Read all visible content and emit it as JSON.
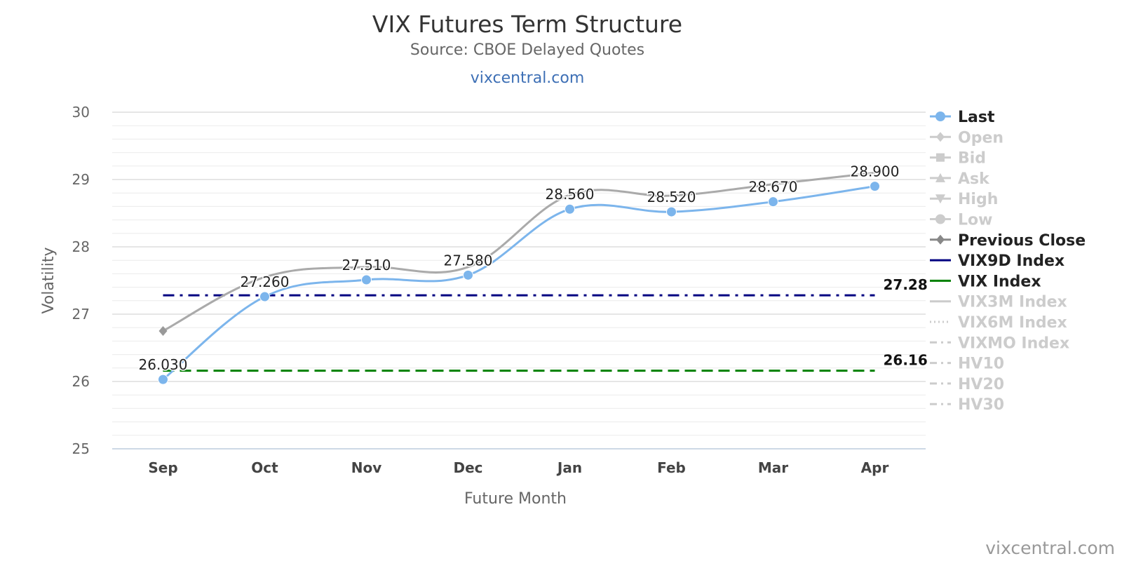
{
  "title": "VIX Futures Term Structure",
  "subtitle": "Source: CBOE Delayed Quotes",
  "site_link": "vixcentral.com",
  "credit": "vixcentral.com",
  "chart_data": {
    "type": "line",
    "title": "VIX Futures Term Structure",
    "subtitle": "Source: CBOE Delayed Quotes",
    "xlabel": "Future Month",
    "ylabel": "Volatility",
    "ylim": [
      25,
      30
    ],
    "yticks": [
      25,
      26,
      27,
      28,
      29,
      30
    ],
    "grid": true,
    "legend_position": "right",
    "categories": [
      "Sep",
      "Oct",
      "Nov",
      "Dec",
      "Jan",
      "Feb",
      "Mar",
      "Apr"
    ],
    "series": [
      {
        "name": "Last",
        "color": "#7cb5ec",
        "marker": "circle",
        "visible": true,
        "values": [
          26.03,
          27.26,
          27.51,
          27.58,
          28.56,
          28.52,
          28.67,
          28.9
        ],
        "labels": [
          "26.030",
          "27.260",
          "27.510",
          "27.580",
          "28.560",
          "28.520",
          "28.670",
          "28.900"
        ]
      },
      {
        "name": "Previous Close",
        "color": "#aaaaaa",
        "marker": "diamond",
        "visible": true,
        "values": [
          26.75,
          27.55,
          27.7,
          27.7,
          28.77,
          28.76,
          28.93,
          29.1
        ]
      }
    ],
    "reference_lines": [
      {
        "name": "VIX9D Index",
        "value": 27.28,
        "label": "27.28",
        "color": "#000080",
        "dash": "dash-dot"
      },
      {
        "name": "VIX Index",
        "value": 26.16,
        "label": "26.16",
        "color": "#008000",
        "dash": "dash"
      }
    ],
    "legend": [
      {
        "name": "Last",
        "symbol": "circle",
        "line": "solid",
        "color": "#7cb5ec",
        "active": true
      },
      {
        "name": "Open",
        "symbol": "diamond",
        "line": "solid",
        "color": "#cccccc",
        "active": false
      },
      {
        "name": "Bid",
        "symbol": "square",
        "line": "solid",
        "color": "#cccccc",
        "active": false
      },
      {
        "name": "Ask",
        "symbol": "triangle",
        "line": "solid",
        "color": "#cccccc",
        "active": false
      },
      {
        "name": "High",
        "symbol": "triangle-down",
        "line": "solid",
        "color": "#cccccc",
        "active": false
      },
      {
        "name": "Low",
        "symbol": "circle",
        "line": "solid",
        "color": "#cccccc",
        "active": false
      },
      {
        "name": "Previous Close",
        "symbol": "diamond",
        "line": "solid",
        "color": "#888888",
        "active": true
      },
      {
        "name": "VIX9D Index",
        "symbol": "none",
        "line": "solid",
        "color": "#000080",
        "active": true
      },
      {
        "name": "VIX Index",
        "symbol": "none",
        "line": "solid",
        "color": "#008000",
        "active": true
      },
      {
        "name": "VIX3M Index",
        "symbol": "none",
        "line": "solid",
        "color": "#cccccc",
        "active": false
      },
      {
        "name": "VIX6M Index",
        "symbol": "none",
        "line": "dotted",
        "color": "#cccccc",
        "active": false
      },
      {
        "name": "VIXMO Index",
        "symbol": "none",
        "line": "dash-dot",
        "color": "#cccccc",
        "active": false
      },
      {
        "name": "HV10",
        "symbol": "none",
        "line": "dash-dot",
        "color": "#cccccc",
        "active": false
      },
      {
        "name": "HV20",
        "symbol": "none",
        "line": "dash-dot",
        "color": "#cccccc",
        "active": false
      },
      {
        "name": "HV30",
        "symbol": "none",
        "line": "dash-dot",
        "color": "#cccccc",
        "active": false
      }
    ]
  }
}
